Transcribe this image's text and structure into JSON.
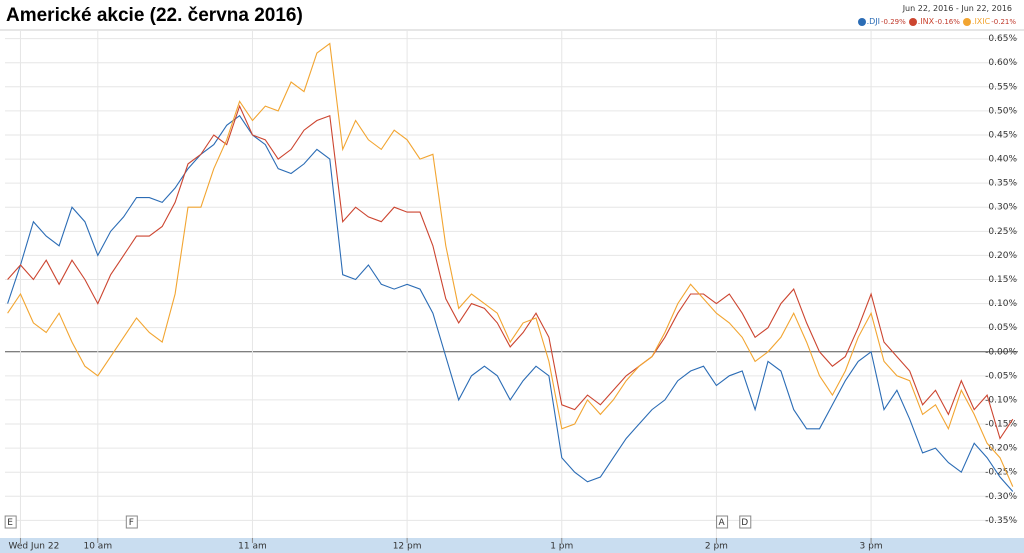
{
  "chart_data": {
    "type": "line",
    "title": "Americké akcie (22. června 2016)",
    "date_range": "Jun 22, 2016  -  Jun 22, 2016",
    "x": [
      565,
      570,
      575,
      580,
      585,
      590,
      595,
      600,
      605,
      610,
      615,
      620,
      625,
      630,
      635,
      640,
      645,
      650,
      655,
      660,
      665,
      670,
      675,
      680,
      685,
      690,
      695,
      700,
      705,
      710,
      715,
      720,
      725,
      730,
      735,
      740,
      745,
      750,
      755,
      760,
      765,
      770,
      775,
      780,
      785,
      790,
      795,
      800,
      805,
      810,
      815,
      820,
      825,
      830,
      835,
      840,
      845,
      850,
      855,
      860,
      865,
      870,
      875,
      880,
      885,
      890,
      895,
      900,
      905,
      910,
      915,
      920,
      925,
      930,
      935,
      940,
      945,
      950,
      955
    ],
    "series": [
      {
        "name": ".DJI",
        "change": "-0.29%",
        "color": "#2b6cb5",
        "values": [
          0.1,
          0.18,
          0.27,
          0.24,
          0.22,
          0.3,
          0.27,
          0.2,
          0.25,
          0.28,
          0.32,
          0.32,
          0.31,
          0.34,
          0.38,
          0.41,
          0.43,
          0.47,
          0.49,
          0.45,
          0.43,
          0.38,
          0.37,
          0.39,
          0.42,
          0.4,
          0.16,
          0.15,
          0.18,
          0.14,
          0.13,
          0.14,
          0.13,
          0.08,
          -0.01,
          -0.1,
          -0.05,
          -0.03,
          -0.05,
          -0.1,
          -0.06,
          -0.03,
          -0.05,
          -0.22,
          -0.25,
          -0.27,
          -0.26,
          -0.22,
          -0.18,
          -0.15,
          -0.12,
          -0.1,
          -0.06,
          -0.04,
          -0.03,
          -0.07,
          -0.05,
          -0.04,
          -0.12,
          -0.02,
          -0.04,
          -0.12,
          -0.16,
          -0.16,
          -0.11,
          -0.06,
          -0.02,
          0.0,
          -0.12,
          -0.08,
          -0.14,
          -0.21,
          -0.2,
          -0.23,
          -0.25,
          -0.19,
          -0.22,
          -0.26,
          -0.29
        ]
      },
      {
        "name": ".INX",
        "change": "-0.16%",
        "color": "#cc4530",
        "values": [
          0.15,
          0.18,
          0.15,
          0.19,
          0.14,
          0.19,
          0.15,
          0.1,
          0.16,
          0.2,
          0.24,
          0.24,
          0.26,
          0.31,
          0.39,
          0.41,
          0.45,
          0.43,
          0.51,
          0.45,
          0.44,
          0.4,
          0.42,
          0.46,
          0.48,
          0.49,
          0.27,
          0.3,
          0.28,
          0.27,
          0.3,
          0.29,
          0.29,
          0.22,
          0.11,
          0.06,
          0.1,
          0.09,
          0.06,
          0.01,
          0.04,
          0.08,
          0.03,
          -0.11,
          -0.12,
          -0.09,
          -0.11,
          -0.08,
          -0.05,
          -0.03,
          -0.01,
          0.03,
          0.08,
          0.12,
          0.12,
          0.1,
          0.12,
          0.08,
          0.03,
          0.05,
          0.1,
          0.13,
          0.06,
          0.0,
          -0.03,
          -0.01,
          0.05,
          0.12,
          0.02,
          -0.01,
          -0.04,
          -0.11,
          -0.08,
          -0.13,
          -0.06,
          -0.12,
          -0.09,
          -0.18,
          -0.14
        ]
      },
      {
        "name": ".IXIC",
        "change": "-0.21%",
        "color": "#f2a531",
        "values": [
          0.08,
          0.12,
          0.06,
          0.04,
          0.08,
          0.02,
          -0.03,
          -0.05,
          -0.01,
          0.03,
          0.07,
          0.04,
          0.02,
          0.12,
          0.3,
          0.3,
          0.38,
          0.44,
          0.52,
          0.48,
          0.51,
          0.5,
          0.56,
          0.54,
          0.62,
          0.64,
          0.42,
          0.48,
          0.44,
          0.42,
          0.46,
          0.44,
          0.4,
          0.41,
          0.22,
          0.09,
          0.12,
          0.1,
          0.08,
          0.02,
          0.06,
          0.07,
          -0.02,
          -0.16,
          -0.15,
          -0.1,
          -0.13,
          -0.1,
          -0.06,
          -0.03,
          -0.01,
          0.04,
          0.1,
          0.14,
          0.11,
          0.08,
          0.06,
          0.03,
          -0.02,
          0.0,
          0.03,
          0.08,
          0.02,
          -0.05,
          -0.09,
          -0.04,
          0.03,
          0.08,
          -0.02,
          -0.05,
          -0.06,
          -0.13,
          -0.11,
          -0.16,
          -0.08,
          -0.13,
          -0.19,
          -0.22,
          -0.28
        ]
      }
    ],
    "xlim": [
      564,
      957
    ],
    "xticks": [
      {
        "value": 570,
        "label": "Wed Jun 22"
      },
      {
        "value": 600,
        "label": "10 am"
      },
      {
        "value": 660,
        "label": "11 am"
      },
      {
        "value": 720,
        "label": "12 pm"
      },
      {
        "value": 780,
        "label": "1 pm"
      },
      {
        "value": 840,
        "label": "2 pm"
      },
      {
        "value": 900,
        "label": "3 pm"
      }
    ],
    "ylim": [
      -0.37,
      0.67
    ],
    "yticks": [
      {
        "value": 0.65,
        "label": "0.65%"
      },
      {
        "value": 0.6,
        "label": "0.60%"
      },
      {
        "value": 0.55,
        "label": "0.55%"
      },
      {
        "value": 0.5,
        "label": "0.50%"
      },
      {
        "value": 0.45,
        "label": "0.45%"
      },
      {
        "value": 0.4,
        "label": "0.40%"
      },
      {
        "value": 0.35,
        "label": "0.35%"
      },
      {
        "value": 0.3,
        "label": "0.30%"
      },
      {
        "value": 0.25,
        "label": "0.25%"
      },
      {
        "value": 0.2,
        "label": "0.20%"
      },
      {
        "value": 0.15,
        "label": "0.15%"
      },
      {
        "value": 0.1,
        "label": "0.10%"
      },
      {
        "value": 0.05,
        "label": "0.05%"
      },
      {
        "value": 0,
        "label": "-0.00%"
      },
      {
        "value": -0.05,
        "label": "-0.05%"
      },
      {
        "value": -0.1,
        "label": "-0.10%"
      },
      {
        "value": -0.15,
        "label": "-0.15%"
      },
      {
        "value": -0.2,
        "label": "-0.20%"
      },
      {
        "value": -0.25,
        "label": "-0.25%"
      },
      {
        "value": -0.3,
        "label": "-0.30%"
      },
      {
        "value": -0.35,
        "label": "-0.35%"
      }
    ],
    "grid": true,
    "events": [
      {
        "label": "E",
        "x": 566
      },
      {
        "label": "F",
        "x": 613
      },
      {
        "label": "A",
        "x": 842
      },
      {
        "label": "D",
        "x": 851
      }
    ]
  }
}
